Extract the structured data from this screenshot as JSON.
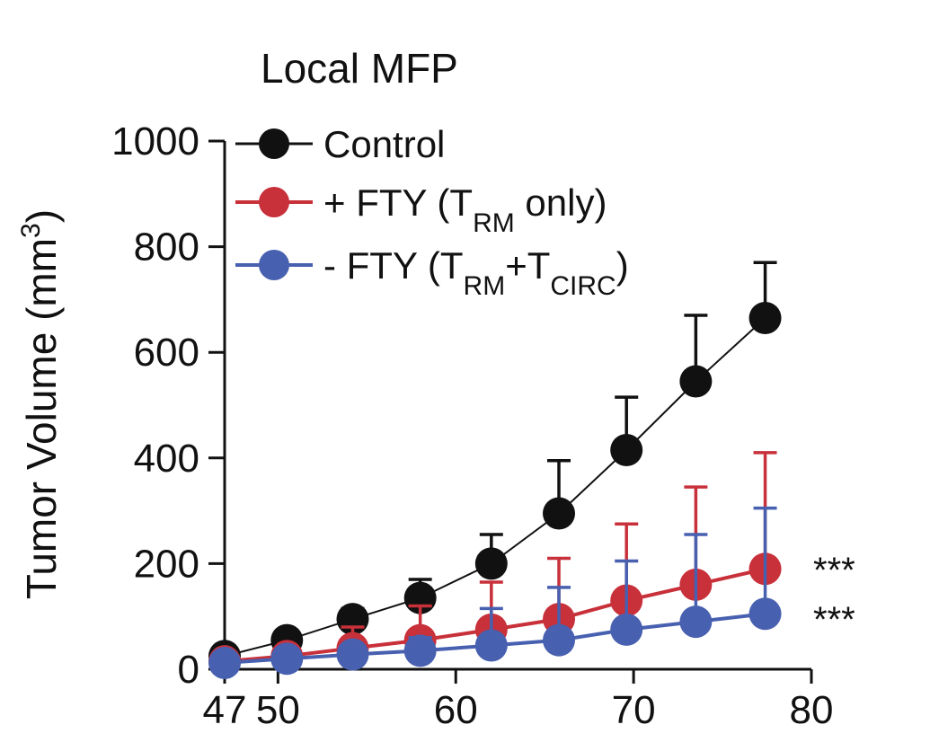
{
  "chart_data": {
    "type": "line",
    "title": "Local MFP",
    "ylabel": "Tumor Volume (mm",
    "ylabel_sup": "3",
    "ylabel_close": ")",
    "xlabel": "",
    "xlim": [
      47,
      80
    ],
    "ylim": [
      0,
      1000
    ],
    "x_ticks": [
      47,
      50,
      60,
      70,
      80
    ],
    "y_ticks": [
      0,
      200,
      400,
      600,
      800,
      1000
    ],
    "grid": false,
    "legend_position": "top-left",
    "legend": [
      {
        "main": "Control"
      },
      {
        "main": "+ FTY (T",
        "sub": "RM",
        "tail": " only)"
      },
      {
        "main": "- FTY (T",
        "sub": "RM",
        "mid": "+T",
        "sub2": "CIRC",
        "tail": ")"
      }
    ],
    "series": [
      {
        "name": "Control",
        "color": "#111111",
        "x": [
          47,
          50.5,
          54.2,
          58,
          62,
          65.8,
          69.6,
          73.5,
          77.4
        ],
        "y": [
          25,
          55,
          95,
          135,
          200,
          295,
          415,
          545,
          665
        ],
        "err": [
          10,
          15,
          20,
          35,
          55,
          100,
          100,
          125,
          105
        ]
      },
      {
        "name": "+ FTY (TRM only)",
        "color": "#c8303a",
        "x": [
          47,
          50.5,
          54.2,
          58,
          62,
          65.8,
          69.6,
          73.5,
          77.4
        ],
        "y": [
          15,
          25,
          40,
          55,
          75,
          95,
          130,
          160,
          190
        ],
        "err": [
          5,
          10,
          40,
          65,
          90,
          115,
          145,
          185,
          220
        ]
      },
      {
        "name": "- FTY (TRM+TCIRC)",
        "color": "#4860b0",
        "x": [
          47,
          50.5,
          54.2,
          58,
          62,
          65.8,
          69.6,
          73.5,
          77.4
        ],
        "y": [
          12,
          20,
          28,
          35,
          45,
          55,
          75,
          90,
          105
        ],
        "err": [
          5,
          8,
          12,
          25,
          70,
          100,
          130,
          165,
          200
        ]
      }
    ],
    "annotations": [
      "***",
      "***"
    ]
  }
}
